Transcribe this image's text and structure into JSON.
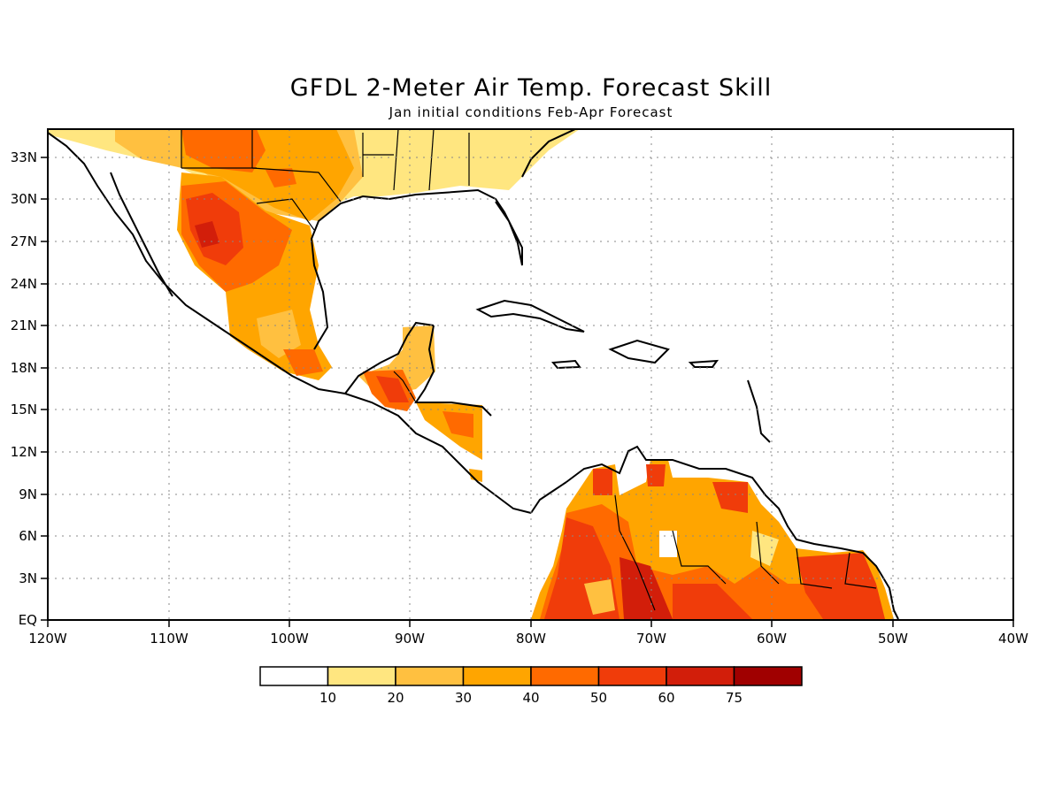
{
  "title": "GFDL 2-Meter Air Temp. Forecast Skill",
  "subtitle": "Jan initial conditions  Feb-Apr Forecast",
  "map": {
    "lon_range": [
      -120,
      -40
    ],
    "lat_range": [
      0,
      35
    ],
    "lon_labels": [
      "120W",
      "110W",
      "100W",
      "90W",
      "80W",
      "70W",
      "60W",
      "50W",
      "40W"
    ],
    "lat_labels": [
      "EQ",
      "3N",
      "6N",
      "9N",
      "12N",
      "15N",
      "18N",
      "21N",
      "24N",
      "27N",
      "30N",
      "33N"
    ],
    "grid": "dotted"
  },
  "legend": {
    "labels": [
      "10",
      "20",
      "30",
      "40",
      "50",
      "60",
      "75"
    ],
    "colors": [
      "#ffffff",
      "#ffe680",
      "#ffc040",
      "#ffa500",
      "#ff6a00",
      "#f03c0a",
      "#d21e0a",
      "#a00000"
    ]
  }
}
